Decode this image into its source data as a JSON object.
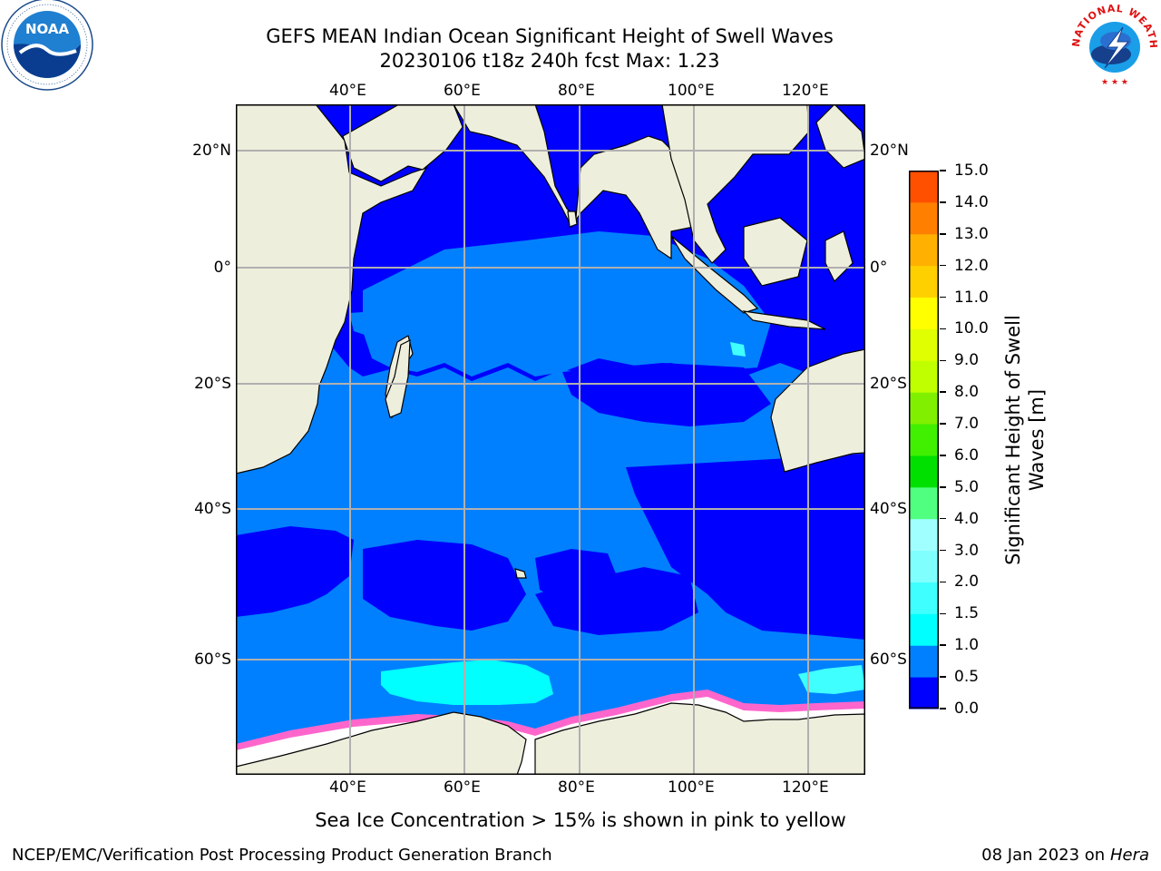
{
  "title_line1": "GEFS MEAN Indian Ocean Significant Height of Swell Waves",
  "title_line2": "20230106 t18z 240h fcst   Max: 1.23",
  "map": {
    "lon_ticks": [
      "40°E",
      "60°E",
      "80°E",
      "100°E",
      "120°E"
    ],
    "lat_ticks": [
      "20°N",
      "0°",
      "20°S",
      "40°S",
      "60°S"
    ],
    "lon_range": [
      20,
      130
    ],
    "lat_range": [
      -75,
      28
    ],
    "colors": {
      "land": "#eeeedd",
      "sea_ice": "#ffffff",
      "ocean_low": "#0000ff",
      "ocean_mid": "#0080ff",
      "ocean_cyan": "#00ffff",
      "grid": "#b0b0b0"
    }
  },
  "colorbar": {
    "label_line1": "Significant Height of Swell",
    "label_line2": "Waves [m]",
    "ticks": [
      "0.0",
      "0.5",
      "1.0",
      "1.5",
      "2.0",
      "3.0",
      "4.0",
      "5.0",
      "6.0",
      "7.0",
      "8.0",
      "9.0",
      "10.0",
      "11.0",
      "12.0",
      "13.0",
      "14.0",
      "15.0"
    ],
    "colors": [
      "#0000ff",
      "#0080ff",
      "#00ffff",
      "#40ffff",
      "#80ffff",
      "#a0ffff",
      "#50ff80",
      "#00e000",
      "#40f000",
      "#80f000",
      "#c0ff00",
      "#e0ff00",
      "#ffff00",
      "#ffd000",
      "#ffb000",
      "#ff8000",
      "#ff5000",
      "#ff2000",
      "#ff0000"
    ]
  },
  "sea_ice_note": "Sea Ice Concentration > 15% is shown in pink to yellow",
  "footer_left": "NCEP/EMC/Verification Post Processing Product Generation Branch",
  "footer_date": "08 Jan 2023 on ",
  "footer_machine": "Hera",
  "logos": {
    "noaa_text": "NOAA",
    "nws_text": "NATIONAL WEATHER SERVICE"
  }
}
